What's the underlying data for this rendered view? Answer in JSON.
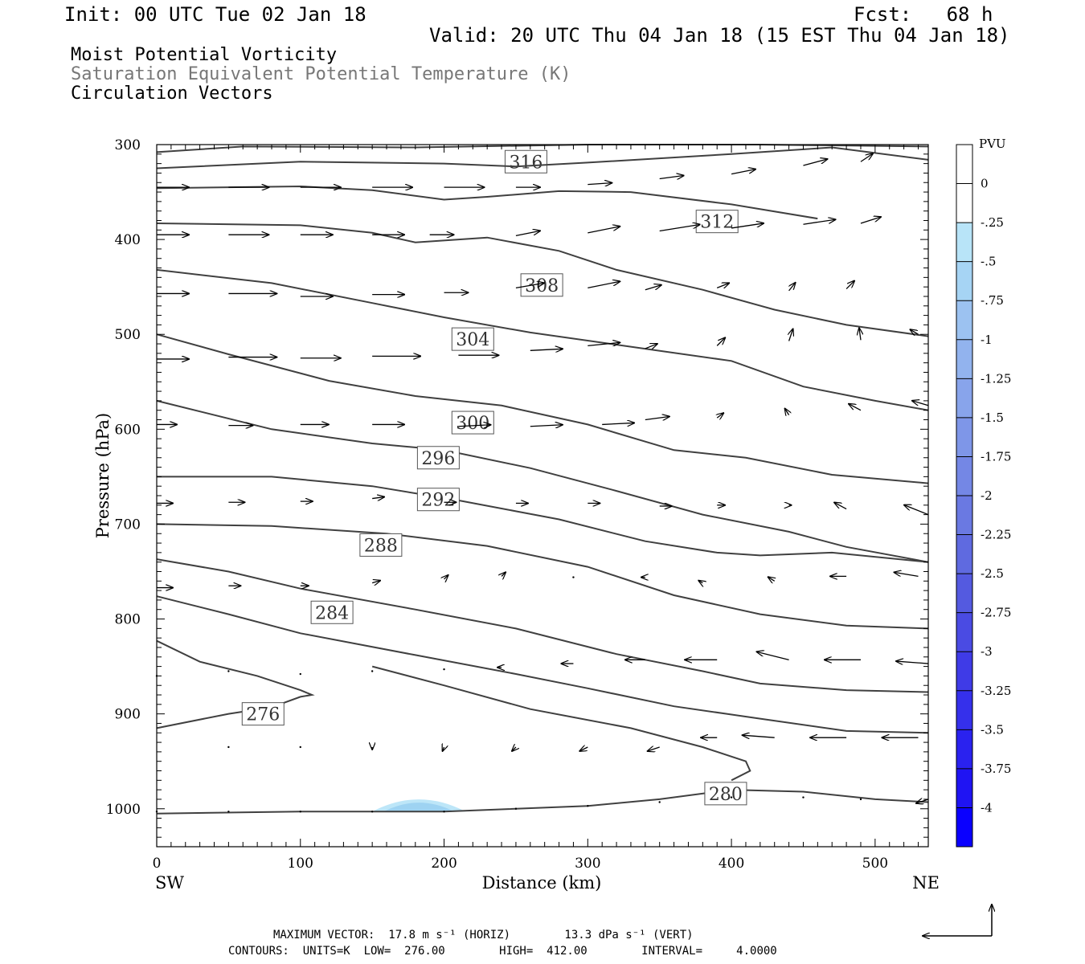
{
  "header": {
    "init": "Init: 00 UTC Tue 02 Jan 18",
    "fcst": "Fcst:   68 h",
    "valid": "Valid: 20 UTC Thu 04 Jan 18 (15 EST Thu 04 Jan 18)"
  },
  "fields": [
    "Moist Potential Vorticity",
    "Saturation Equivalent Potential Temperature (K)",
    "Circulation Vectors"
  ],
  "footer": {
    "vector_text": "MAXIMUM VECTOR:  17.8 m s⁻¹ (HORIZ)        13.3 dPa s⁻¹ (VERT)",
    "contour_text": "CONTOURS:  UNITS=K  LOW=  276.00        HIGH=  412.00        INTERVAL=     4.0000"
  },
  "colors": {
    "contour": "#404040",
    "pv_light": "#bde6f8",
    "pv_mid": "#9ed3f2"
  },
  "chart_data": {
    "type": "cross-section",
    "xlabel": "Distance (km)",
    "ylabel": "Pressure (hPa)",
    "xlim": [
      0,
      537
    ],
    "ylim": [
      1040,
      300
    ],
    "xticks": [
      "0",
      "100",
      "200",
      "300",
      "400",
      "500"
    ],
    "yticks": [
      "300",
      "400",
      "500",
      "600",
      "700",
      "800",
      "900",
      "1000"
    ],
    "left_label": "SW",
    "right_label": "NE",
    "colorbar": {
      "units": "PVU",
      "labels": [
        "0",
        "-.25",
        "-.5",
        "-.75",
        "-1",
        "-1.25",
        "-1.5",
        "-1.75",
        "-2",
        "-2.25",
        "-2.5",
        "-2.75",
        "-3",
        "-3.25",
        "-3.5",
        "-3.75",
        "-4"
      ],
      "colors": [
        "#ffffff",
        "#ffffff",
        "#b8e4f8",
        "#a6d4f4",
        "#9cc2f1",
        "#92b3ee",
        "#88a4eb",
        "#7e96e8",
        "#7487e5",
        "#6a79e2",
        "#5f6ae0",
        "#545ae0",
        "#4a4be3",
        "#3f3be7",
        "#3530eb",
        "#2a22ef",
        "#1f14f3",
        "#0a00ff"
      ]
    },
    "contours": [
      {
        "label": "316",
        "label_at": [
          257,
          318
        ],
        "points": [
          [
            0,
            308
          ],
          [
            60,
            302
          ],
          [
            180,
            303
          ],
          [
            300,
            300
          ],
          [
            420,
            300
          ],
          [
            537,
            302
          ]
        ]
      },
      {
        "label": null,
        "points": [
          [
            0,
            325
          ],
          [
            100,
            318
          ],
          [
            200,
            320
          ],
          [
            250,
            323
          ],
          [
            300,
            319
          ],
          [
            400,
            310
          ],
          [
            470,
            303
          ],
          [
            537,
            316
          ]
        ]
      },
      {
        "label": null,
        "points": [
          [
            0,
            346
          ],
          [
            100,
            344
          ],
          [
            150,
            348
          ],
          [
            200,
            358
          ],
          [
            230,
            355
          ],
          [
            280,
            349
          ],
          [
            330,
            350
          ],
          [
            400,
            363
          ],
          [
            460,
            378
          ]
        ]
      },
      {
        "label": "312",
        "label_at": [
          390,
          381
        ],
        "points": [
          [
            0,
            383
          ],
          [
            100,
            385
          ],
          [
            150,
            393
          ],
          [
            180,
            403
          ],
          [
            230,
            398
          ],
          [
            280,
            412
          ],
          [
            320,
            432
          ],
          [
            380,
            453
          ],
          [
            430,
            474
          ],
          [
            480,
            490
          ],
          [
            537,
            502
          ]
        ]
      },
      {
        "label": "308",
        "label_at": [
          268,
          448
        ],
        "points": [
          [
            0,
            432
          ],
          [
            80,
            446
          ],
          [
            150,
            467
          ],
          [
            200,
            482
          ],
          [
            260,
            498
          ],
          [
            330,
            513
          ],
          [
            400,
            528
          ],
          [
            450,
            555
          ],
          [
            500,
            570
          ],
          [
            537,
            580
          ]
        ]
      },
      {
        "label": "304",
        "label_at": [
          220,
          505
        ],
        "points": [
          [
            0,
            500
          ],
          [
            50,
            521
          ],
          [
            120,
            549
          ],
          [
            180,
            565
          ],
          [
            240,
            575
          ],
          [
            300,
            595
          ],
          [
            360,
            622
          ],
          [
            410,
            630
          ],
          [
            470,
            648
          ],
          [
            537,
            657
          ]
        ]
      },
      {
        "label": "300",
        "label_at": [
          220,
          593
        ],
        "points": [
          [
            0,
            570
          ],
          [
            80,
            600
          ],
          [
            150,
            615
          ],
          [
            200,
            622
          ],
          [
            260,
            641
          ],
          [
            320,
            665
          ],
          [
            380,
            690
          ],
          [
            440,
            708
          ],
          [
            480,
            724
          ],
          [
            537,
            740
          ]
        ]
      },
      {
        "label": "296",
        "label_at": [
          196,
          630
        ],
        "points": [
          [
            0,
            650
          ],
          [
            80,
            650
          ],
          [
            150,
            660
          ],
          [
            210,
            675
          ],
          [
            280,
            695
          ],
          [
            340,
            718
          ],
          [
            390,
            730
          ],
          [
            420,
            733
          ],
          [
            470,
            730
          ],
          [
            537,
            740
          ]
        ]
      },
      {
        "label": "292",
        "label_at": [
          196,
          674
        ],
        "points": [
          [
            0,
            700
          ],
          [
            80,
            702
          ],
          [
            160,
            710
          ],
          [
            230,
            723
          ],
          [
            300,
            745
          ],
          [
            360,
            775
          ],
          [
            420,
            795
          ],
          [
            480,
            807
          ],
          [
            537,
            810
          ]
        ]
      },
      {
        "label": "288",
        "label_at": [
          156,
          722
        ],
        "points": [
          [
            0,
            737
          ],
          [
            50,
            750
          ],
          [
            100,
            768
          ],
          [
            180,
            790
          ],
          [
            250,
            810
          ],
          [
            320,
            837
          ],
          [
            380,
            855
          ],
          [
            420,
            868
          ],
          [
            480,
            875
          ],
          [
            537,
            877
          ]
        ]
      },
      {
        "label": "284",
        "label_at": [
          122,
          793
        ],
        "points": [
          [
            0,
            776
          ],
          [
            50,
            795
          ],
          [
            100,
            815
          ],
          [
            180,
            838
          ],
          [
            250,
            858
          ],
          [
            300,
            873
          ],
          [
            360,
            892
          ],
          [
            420,
            905
          ],
          [
            480,
            918
          ],
          [
            537,
            920
          ]
        ]
      },
      {
        "label": "276",
        "label_at": [
          74,
          900
        ],
        "points": [
          [
            0,
            915
          ],
          [
            50,
            900
          ],
          [
            80,
            893
          ],
          [
            100,
            882
          ],
          [
            108,
            880
          ],
          [
            100,
            875
          ],
          [
            70,
            860
          ],
          [
            30,
            845
          ],
          [
            0,
            823
          ]
        ]
      },
      {
        "label": null,
        "points": [
          [
            150,
            850
          ],
          [
            200,
            870
          ],
          [
            260,
            895
          ],
          [
            330,
            915
          ],
          [
            380,
            935
          ],
          [
            410,
            950
          ],
          [
            413,
            960
          ],
          [
            400,
            970
          ]
        ]
      },
      {
        "label": "280",
        "label_at": [
          396,
          984
        ],
        "points": [
          [
            0,
            1005
          ],
          [
            100,
            1003
          ],
          [
            200,
            1003
          ],
          [
            300,
            997
          ],
          [
            350,
            990
          ],
          [
            400,
            980
          ],
          [
            450,
            982
          ],
          [
            500,
            990
          ],
          [
            537,
            993
          ]
        ]
      }
    ],
    "pv_shading": [
      {
        "values": [
          -0.25,
          -0.5
        ],
        "x_range": [
          150,
          215
        ],
        "p_top": 984,
        "p_bottom": 1003
      }
    ],
    "vectors": [
      [
        0,
        345,
        40,
        0
      ],
      [
        50,
        345,
        50,
        0
      ],
      [
        100,
        345,
        50,
        0
      ],
      [
        150,
        345,
        50,
        0
      ],
      [
        200,
        345,
        50,
        0
      ],
      [
        250,
        345,
        30,
        0
      ],
      [
        300,
        342,
        30,
        -2
      ],
      [
        350,
        336,
        30,
        -4
      ],
      [
        400,
        331,
        30,
        -6
      ],
      [
        450,
        322,
        30,
        -8
      ],
      [
        490,
        318,
        15,
        -10
      ],
      [
        0,
        395,
        40,
        0
      ],
      [
        50,
        395,
        50,
        0
      ],
      [
        100,
        395,
        40,
        0
      ],
      [
        150,
        395,
        40,
        0
      ],
      [
        190,
        395,
        30,
        0
      ],
      [
        250,
        396,
        30,
        -6
      ],
      [
        300,
        393,
        40,
        -8
      ],
      [
        350,
        391,
        50,
        -8
      ],
      [
        400,
        388,
        40,
        -6
      ],
      [
        450,
        384,
        40,
        -6
      ],
      [
        490,
        383,
        25,
        -8
      ],
      [
        0,
        457,
        40,
        0
      ],
      [
        50,
        457,
        60,
        0
      ],
      [
        100,
        460,
        40,
        0
      ],
      [
        150,
        458,
        40,
        0
      ],
      [
        200,
        456,
        30,
        0
      ],
      [
        250,
        451,
        35,
        -6
      ],
      [
        300,
        451,
        40,
        -8
      ],
      [
        340,
        453,
        20,
        -6
      ],
      [
        390,
        451,
        15,
        -6
      ],
      [
        440,
        454,
        8,
        -10
      ],
      [
        480,
        452,
        10,
        -10
      ],
      [
        0,
        526,
        40,
        0
      ],
      [
        50,
        524,
        60,
        0
      ],
      [
        100,
        525,
        50,
        0
      ],
      [
        150,
        523,
        60,
        0
      ],
      [
        210,
        522,
        50,
        0
      ],
      [
        260,
        517,
        40,
        -2
      ],
      [
        300,
        512,
        40,
        -4
      ],
      [
        340,
        515,
        15,
        -6
      ],
      [
        390,
        512,
        10,
        -10
      ],
      [
        440,
        507,
        5,
        -15
      ],
      [
        490,
        506,
        -2,
        -15
      ],
      [
        530,
        500,
        -10,
        -6
      ],
      [
        0,
        595,
        25,
        0
      ],
      [
        50,
        596,
        30,
        0
      ],
      [
        100,
        595,
        35,
        0
      ],
      [
        150,
        595,
        40,
        0
      ],
      [
        210,
        597,
        40,
        -2
      ],
      [
        260,
        597,
        40,
        -2
      ],
      [
        310,
        595,
        40,
        -2
      ],
      [
        340,
        590,
        30,
        -4
      ],
      [
        390,
        588,
        8,
        -6
      ],
      [
        440,
        585,
        -5,
        -8
      ],
      [
        490,
        580,
        -15,
        -8
      ],
      [
        537,
        575,
        -20,
        -6
      ],
      [
        0,
        678,
        20,
        0
      ],
      [
        50,
        677,
        20,
        0
      ],
      [
        100,
        676,
        15,
        0
      ],
      [
        150,
        673,
        15,
        -2
      ],
      [
        200,
        677,
        15,
        0
      ],
      [
        250,
        678,
        15,
        0
      ],
      [
        300,
        678,
        15,
        0
      ],
      [
        350,
        681,
        15,
        0
      ],
      [
        390,
        680,
        10,
        0
      ],
      [
        440,
        680,
        3,
        0
      ],
      [
        480,
        684,
        -15,
        -8
      ],
      [
        537,
        690,
        -30,
        -12
      ],
      [
        0,
        767,
        20,
        0
      ],
      [
        50,
        765,
        15,
        0
      ],
      [
        100,
        765,
        10,
        0
      ],
      [
        150,
        762,
        10,
        -3
      ],
      [
        200,
        758,
        5,
        -5
      ],
      [
        240,
        755,
        5,
        -5
      ],
      [
        290,
        756,
        0,
        0
      ],
      [
        340,
        756,
        -5,
        0
      ],
      [
        380,
        762,
        -5,
        -3
      ],
      [
        430,
        760,
        -8,
        -5
      ],
      [
        480,
        755,
        -20,
        0
      ],
      [
        530,
        755,
        -30,
        -5
      ],
      [
        0,
        860,
        0,
        0
      ],
      [
        50,
        855,
        0,
        0
      ],
      [
        100,
        858,
        0,
        0
      ],
      [
        150,
        855,
        0,
        0
      ],
      [
        200,
        853,
        0,
        0
      ],
      [
        240,
        851,
        -5,
        0
      ],
      [
        290,
        847,
        -15,
        0
      ],
      [
        340,
        843,
        -25,
        0
      ],
      [
        390,
        843,
        -40,
        0
      ],
      [
        440,
        843,
        -40,
        -10
      ],
      [
        490,
        843,
        -45,
        0
      ],
      [
        537,
        847,
        -40,
        -3
      ],
      [
        50,
        935,
        0,
        0
      ],
      [
        100,
        935,
        0,
        0
      ],
      [
        150,
        935,
        0,
        3
      ],
      [
        200,
        935,
        -2,
        5
      ],
      [
        250,
        935,
        -5,
        5
      ],
      [
        300,
        935,
        -10,
        5
      ],
      [
        350,
        935,
        -15,
        5
      ],
      [
        390,
        925,
        -20,
        0
      ],
      [
        430,
        925,
        -40,
        -3
      ],
      [
        480,
        925,
        -45,
        0
      ],
      [
        530,
        925,
        -45,
        0
      ],
      [
        0,
        1003,
        0,
        0
      ],
      [
        50,
        1003,
        0,
        0
      ],
      [
        100,
        1003,
        0,
        0
      ],
      [
        150,
        1003,
        0,
        0
      ],
      [
        200,
        1003,
        0,
        0
      ],
      [
        250,
        1000,
        0,
        0
      ],
      [
        300,
        997,
        0,
        0
      ],
      [
        350,
        993,
        0,
        0
      ],
      [
        400,
        988,
        0,
        0
      ],
      [
        450,
        988,
        0,
        0
      ],
      [
        490,
        990,
        0,
        0
      ],
      [
        537,
        990,
        -15,
        5
      ]
    ],
    "reference_vector": "horizontal + vertical arrows"
  }
}
